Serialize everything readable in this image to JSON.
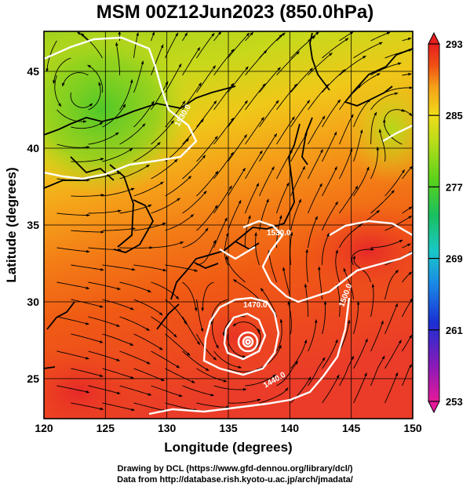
{
  "title": "MSM 00Z12Jun2023 (850.0hPa)",
  "x_axis": {
    "label": "Longitude (degrees)",
    "range": [
      120,
      150
    ],
    "ticks": [
      "120",
      "125",
      "130",
      "135",
      "140",
      "145",
      "150"
    ]
  },
  "y_axis": {
    "label": "Latitude  (degrees)",
    "range": [
      22.4,
      47.6
    ],
    "ticks": [
      "25",
      "30",
      "35",
      "40",
      "45"
    ]
  },
  "colorbar": {
    "range": [
      253,
      293
    ],
    "ticks": [
      "253",
      "261",
      "269",
      "277",
      "285",
      "293"
    ],
    "colors": [
      "#e6199a",
      "#8a1ab8",
      "#1a2fd4",
      "#1a8ae6",
      "#19c8c8",
      "#19c060",
      "#5ad21a",
      "#b4dc1a",
      "#f0dc19",
      "#f5a019",
      "#f05014",
      "#e61e1e"
    ]
  },
  "contour_labels": [
    "1530.0",
    "1530.0",
    "1500.0",
    "1470.0",
    "1440.0"
  ],
  "credits": [
    "Drawing by DCL (https://www.gfd-dennou.org/library/dcl/)",
    "Data from http://database.rish.kyoto-u.ac.jp/arch/jmadata/"
  ]
}
